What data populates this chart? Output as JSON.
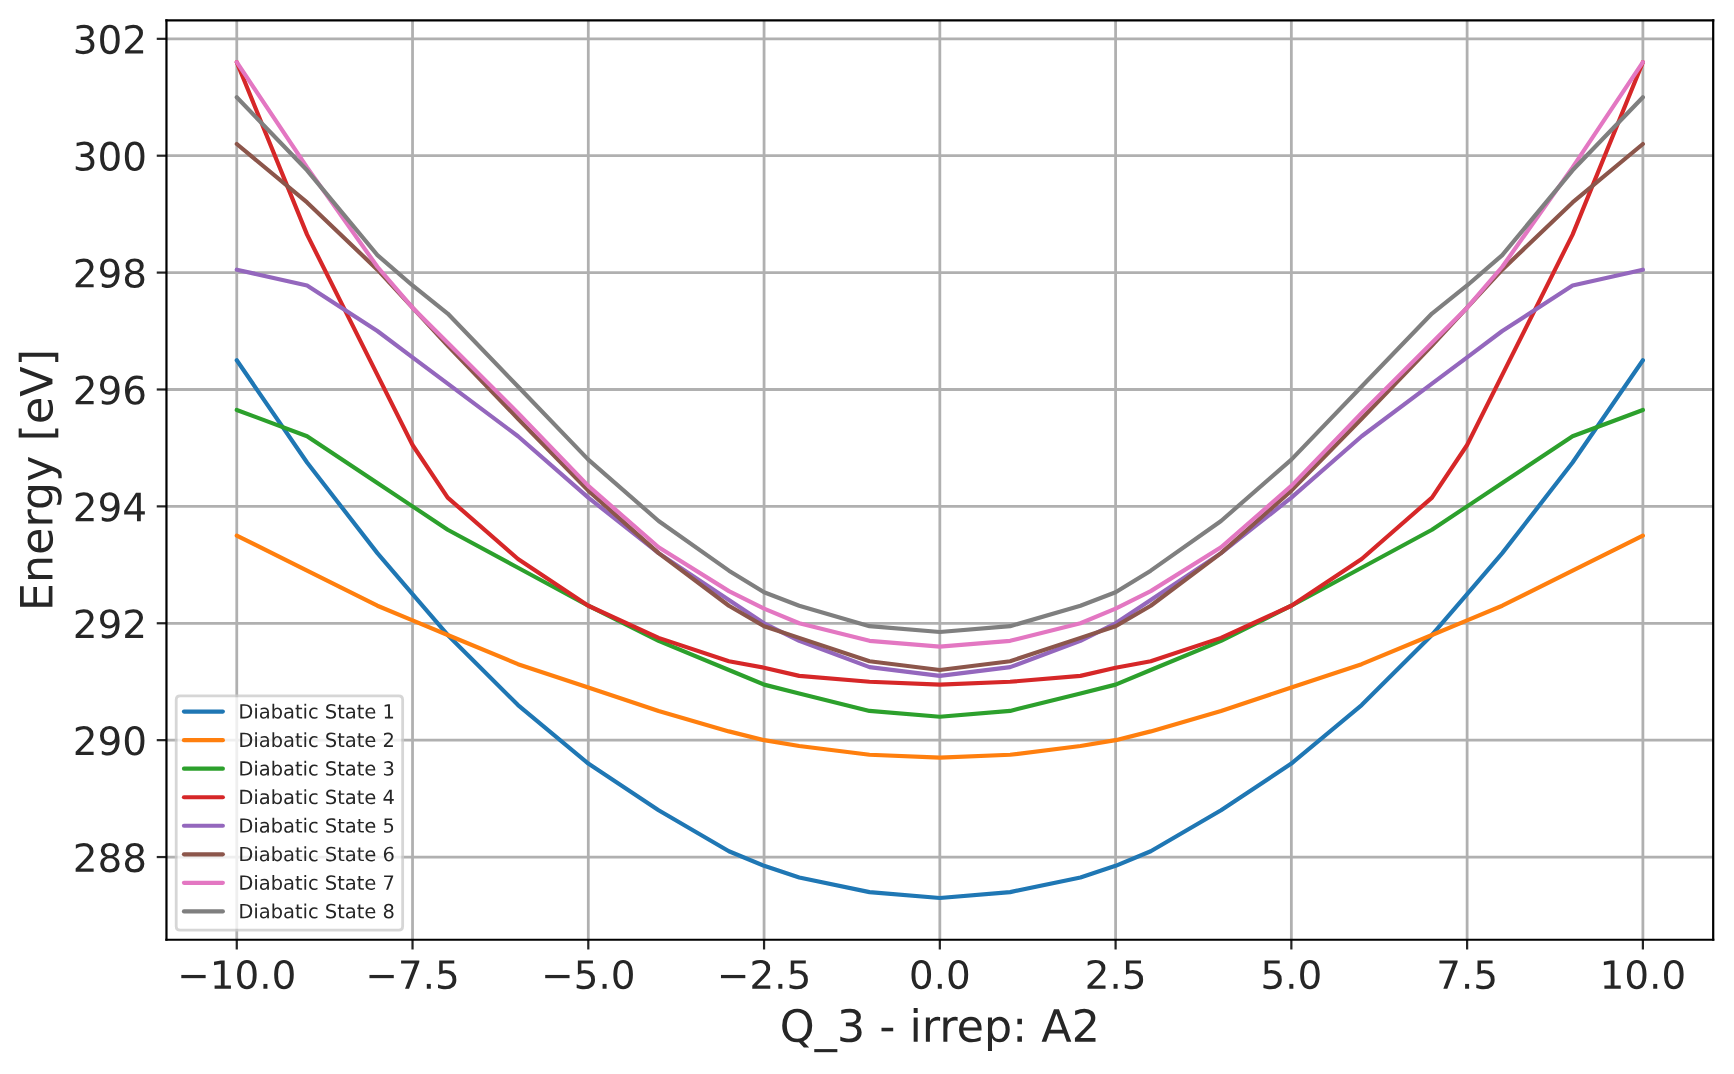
{
  "chart_data": {
    "type": "line",
    "xlabel": "Q_3 - irrep: A2",
    "ylabel": "Energy [eV]",
    "x": [
      -10,
      -9,
      -8,
      -7.5,
      -7,
      -6,
      -5,
      -4,
      -3,
      -2.5,
      -2,
      -1,
      0,
      1,
      2,
      2.5,
      3,
      4,
      5,
      6,
      7,
      7.5,
      8,
      9,
      10
    ],
    "series": [
      {
        "name": "Diabatic State 1",
        "color": "#1f77b4",
        "values": [
          296.5,
          294.75,
          293.2,
          292.5,
          291.8,
          290.6,
          289.6,
          288.8,
          288.1,
          287.85,
          287.65,
          287.4,
          287.3,
          287.4,
          287.65,
          287.85,
          288.1,
          288.8,
          289.6,
          290.6,
          291.8,
          292.5,
          293.2,
          294.75,
          296.5
        ]
      },
      {
        "name": "Diabatic State 2",
        "color": "#ff7f0e",
        "values": [
          293.5,
          292.9,
          292.3,
          292.05,
          291.8,
          291.3,
          290.9,
          290.5,
          290.15,
          290.0,
          289.9,
          289.75,
          289.7,
          289.75,
          289.9,
          290.0,
          290.15,
          290.5,
          290.9,
          291.3,
          291.8,
          292.05,
          292.3,
          292.9,
          293.5
        ]
      },
      {
        "name": "Diabatic State 3",
        "color": "#2ca02c",
        "values": [
          295.65,
          295.2,
          294.4,
          294.0,
          293.6,
          292.95,
          292.3,
          291.7,
          291.2,
          290.95,
          290.8,
          290.5,
          290.4,
          290.5,
          290.8,
          290.95,
          291.2,
          291.7,
          292.3,
          292.95,
          293.6,
          294.0,
          294.4,
          295.2,
          295.65
        ]
      },
      {
        "name": "Diabatic State 4",
        "color": "#d62728",
        "values": [
          301.6,
          298.65,
          296.25,
          295.05,
          294.15,
          293.1,
          292.3,
          291.75,
          291.35,
          291.24,
          291.1,
          291.0,
          290.95,
          291.0,
          291.1,
          291.24,
          291.35,
          291.75,
          292.3,
          293.1,
          294.15,
          295.05,
          296.25,
          298.65,
          301.6
        ]
      },
      {
        "name": "Diabatic State 5",
        "color": "#9467bd",
        "values": [
          298.05,
          297.78,
          297.0,
          296.55,
          296.1,
          295.2,
          294.15,
          293.2,
          292.4,
          292.0,
          291.7,
          291.25,
          291.1,
          291.25,
          291.7,
          292.0,
          292.4,
          293.2,
          294.15,
          295.2,
          296.1,
          296.55,
          297.0,
          297.78,
          298.05
        ]
      },
      {
        "name": "Diabatic State 6",
        "color": "#8c564b",
        "values": [
          300.2,
          299.2,
          298.05,
          297.4,
          296.75,
          295.5,
          294.27,
          293.2,
          292.3,
          291.95,
          291.75,
          291.35,
          291.2,
          291.35,
          291.75,
          291.95,
          292.3,
          293.2,
          294.27,
          295.5,
          296.75,
          297.4,
          298.05,
          299.2,
          300.2
        ]
      },
      {
        "name": "Diabatic State 7",
        "color": "#e377c2",
        "values": [
          301.6,
          299.8,
          298.1,
          297.4,
          296.8,
          295.6,
          294.35,
          293.3,
          292.55,
          292.25,
          292.0,
          291.7,
          291.6,
          291.7,
          292.0,
          292.25,
          292.55,
          293.3,
          294.35,
          295.6,
          296.8,
          297.4,
          298.1,
          299.8,
          301.6
        ]
      },
      {
        "name": "Diabatic State 8",
        "color": "#7f7f7f",
        "values": [
          301.0,
          299.75,
          298.3,
          297.78,
          297.3,
          296.05,
          294.8,
          293.75,
          292.9,
          292.53,
          292.3,
          291.95,
          291.85,
          291.95,
          292.3,
          292.53,
          292.9,
          293.75,
          294.8,
          296.05,
          297.3,
          297.78,
          298.3,
          299.75,
          301.0
        ]
      }
    ],
    "xlim": [
      -11,
      11
    ],
    "ylim": [
      286.585,
      302.315
    ],
    "xticks": [
      {
        "value": -10,
        "label": "−10.0"
      },
      {
        "value": -7.5,
        "label": "−7.5"
      },
      {
        "value": -5,
        "label": "−5.0"
      },
      {
        "value": -2.5,
        "label": "−2.5"
      },
      {
        "value": 0,
        "label": "0.0"
      },
      {
        "value": 2.5,
        "label": "2.5"
      },
      {
        "value": 5,
        "label": "5.0"
      },
      {
        "value": 7.5,
        "label": "7.5"
      },
      {
        "value": 10,
        "label": "10.0"
      }
    ],
    "yticks": [
      288,
      290,
      292,
      294,
      296,
      298,
      300,
      302
    ],
    "grid": true,
    "legend": "bottom left",
    "marker": "none",
    "line_style": "solid"
  }
}
